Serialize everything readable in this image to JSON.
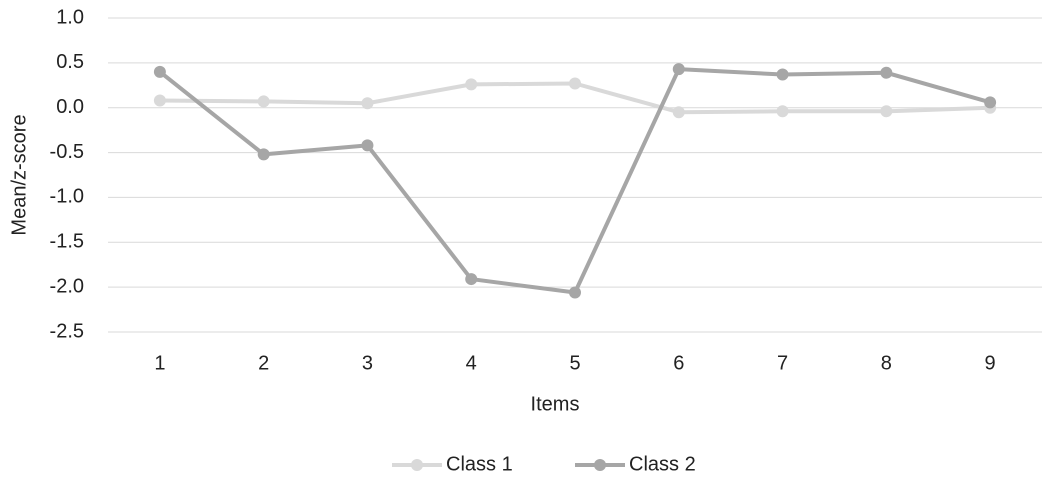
{
  "chart_data": {
    "type": "line",
    "x_label": "Items",
    "y_label": "Mean/z-score",
    "categories": [
      "1",
      "2",
      "3",
      "4",
      "5",
      "6",
      "7",
      "8",
      "9"
    ],
    "series": [
      {
        "name": "Class 1",
        "color": "#d9d9d9",
        "values": [
          0.08,
          0.07,
          0.05,
          0.26,
          0.27,
          -0.05,
          -0.04,
          -0.04,
          0.0
        ]
      },
      {
        "name": "Class 2",
        "color": "#a6a6a6",
        "values": [
          0.4,
          -0.52,
          -0.42,
          -1.91,
          -2.06,
          0.43,
          0.37,
          0.39,
          0.06
        ]
      }
    ],
    "ylim": [
      -2.5,
      1.0
    ],
    "yticks": [
      {
        "value": 1.0,
        "label": "1.0"
      },
      {
        "value": 0.5,
        "label": "0.5"
      },
      {
        "value": 0.0,
        "label": "0.0"
      },
      {
        "value": -0.5,
        "label": "-0.5"
      },
      {
        "value": -1.0,
        "label": "-1.0"
      },
      {
        "value": -1.5,
        "label": "-1.5"
      },
      {
        "value": -2.0,
        "label": "-2.0"
      },
      {
        "value": -2.5,
        "label": "-2.5"
      }
    ],
    "grid": true,
    "legend": "bottom"
  }
}
